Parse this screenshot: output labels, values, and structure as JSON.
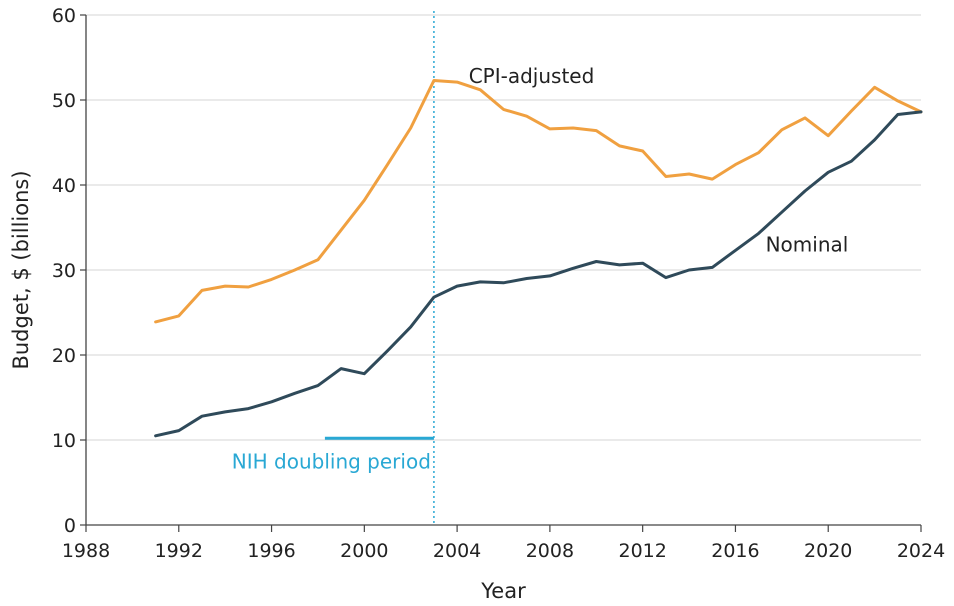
{
  "chart_data": {
    "type": "line",
    "title": "",
    "xlabel": "Year",
    "ylabel": "Budget, $ (billions)",
    "xlim": [
      1988,
      2024
    ],
    "ylim": [
      0,
      60
    ],
    "xticks": [
      1988,
      1992,
      1996,
      2000,
      2004,
      2008,
      2012,
      2016,
      2020,
      2024
    ],
    "yticks": [
      0,
      10,
      20,
      30,
      40,
      50,
      60
    ],
    "grid": "horizontal",
    "x": [
      1991,
      1992,
      1993,
      1994,
      1995,
      1996,
      1997,
      1998,
      1999,
      2000,
      2001,
      2002,
      2003,
      2004,
      2005,
      2006,
      2007,
      2008,
      2009,
      2010,
      2011,
      2012,
      2013,
      2014,
      2015,
      2016,
      2017,
      2018,
      2019,
      2020,
      2021,
      2022,
      2023,
      2024
    ],
    "series": [
      {
        "name": "CPI-adjusted",
        "color": "#f0a040",
        "values": [
          23.9,
          24.6,
          27.6,
          28.1,
          28.0,
          28.9,
          30.0,
          31.2,
          34.7,
          38.2,
          42.4,
          46.7,
          52.3,
          52.1,
          51.2,
          48.9,
          48.1,
          46.6,
          46.7,
          46.4,
          44.6,
          44.0,
          41.0,
          41.3,
          40.7,
          42.4,
          43.8,
          46.5,
          47.9,
          45.8,
          48.7,
          51.5,
          49.9,
          48.6
        ]
      },
      {
        "name": "Nominal",
        "color": "#2f4a5a",
        "values": [
          10.5,
          11.1,
          12.8,
          13.3,
          13.7,
          14.5,
          15.5,
          16.4,
          18.4,
          17.8,
          20.5,
          23.3,
          26.8,
          28.1,
          28.6,
          28.5,
          29.0,
          29.3,
          30.2,
          31.0,
          30.6,
          30.8,
          29.1,
          30.0,
          30.3,
          32.3,
          34.3,
          36.8,
          39.3,
          41.5,
          42.8,
          45.3,
          48.3,
          48.6
        ]
      }
    ],
    "annotations": [
      {
        "text": "CPI-adjusted",
        "series": "CPI-adjusted"
      },
      {
        "text": "Nominal",
        "series": "Nominal"
      },
      {
        "text": "NIH doubling period",
        "x_start": 1998.3,
        "x_end": 2003,
        "y": 10.2,
        "color": "#29a8d4"
      }
    ],
    "reference_line": {
      "x": 2003,
      "style": "dotted",
      "color": "#29a8d4"
    },
    "colors": {
      "grid": "#d4d4d4",
      "axis": "#444444",
      "text": "#222222"
    }
  }
}
